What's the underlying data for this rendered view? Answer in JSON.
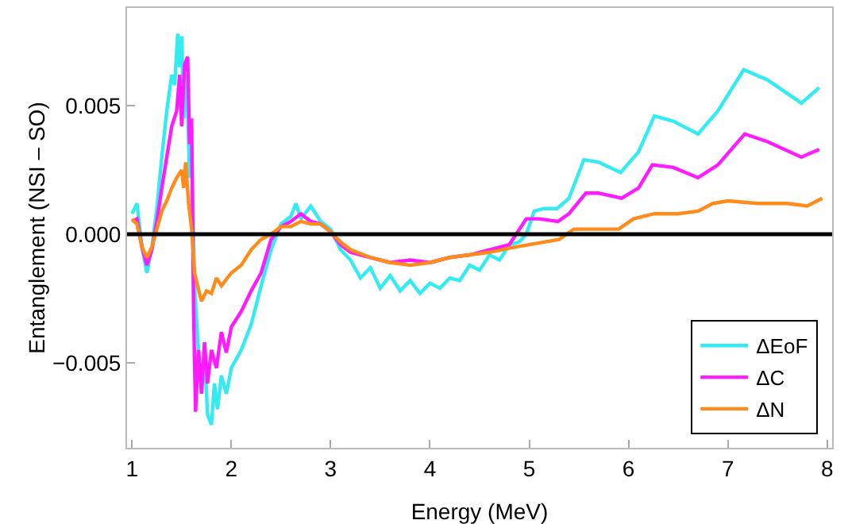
{
  "chart_data": {
    "type": "line",
    "xlabel": "Energy (MeV)",
    "ylabel": "Entanglement (NSI – SO)",
    "xlim": [
      0.95,
      8.05
    ],
    "ylim": [
      -0.0083,
      0.0088
    ],
    "xticks": [
      1,
      2,
      3,
      4,
      5,
      6,
      7,
      8
    ],
    "yticks": [
      {
        "value": -0.005,
        "label": "−0.005"
      },
      {
        "value": 0,
        "label": "0.000"
      },
      {
        "value": 0.005,
        "label": "0.005"
      }
    ],
    "grid": false,
    "legend": "bottom right",
    "marker": "none",
    "line_style": "solid",
    "ref_lines": [
      {
        "axis": "y",
        "value": 0,
        "color": "#000000"
      }
    ],
    "series": [
      {
        "name": "ΔEoF",
        "color": "#33ecf2",
        "x": [
          1.0,
          1.05,
          1.1,
          1.15,
          1.2,
          1.25,
          1.3,
          1.35,
          1.4,
          1.43,
          1.46,
          1.48,
          1.5,
          1.52,
          1.55,
          1.58,
          1.6,
          1.63,
          1.66,
          1.7,
          1.73,
          1.76,
          1.8,
          1.83,
          1.86,
          1.9,
          1.95,
          2.0,
          2.1,
          2.2,
          2.3,
          2.4,
          2.5,
          2.6,
          2.65,
          2.7,
          2.8,
          2.9,
          3.0,
          3.1,
          3.2,
          3.3,
          3.4,
          3.5,
          3.6,
          3.7,
          3.8,
          3.9,
          4.0,
          4.1,
          4.2,
          4.3,
          4.4,
          4.5,
          4.6,
          4.7,
          4.8,
          4.9,
          4.97,
          5.05,
          5.15,
          5.28,
          5.4,
          5.55,
          5.7,
          5.92,
          6.1,
          6.26,
          6.45,
          6.7,
          6.9,
          7.16,
          7.4,
          7.74,
          7.92
        ],
        "values": [
          0.0008,
          0.0012,
          -0.0005,
          -0.0015,
          -0.0005,
          0.001,
          0.003,
          0.0048,
          0.0062,
          0.0058,
          0.0078,
          0.0065,
          0.0077,
          0.0045,
          0.0062,
          0.0022,
          0.0035,
          -0.002,
          -0.004,
          -0.0062,
          -0.0045,
          -0.007,
          -0.0074,
          -0.0058,
          -0.0068,
          -0.0055,
          -0.0062,
          -0.0052,
          -0.0045,
          -0.0035,
          -0.002,
          -0.0006,
          0.0004,
          0.0007,
          0.0012,
          0.0006,
          0.0011,
          0.0005,
          0.0002,
          -0.0006,
          -0.001,
          -0.0017,
          -0.0013,
          -0.0021,
          -0.0016,
          -0.0022,
          -0.0018,
          -0.0023,
          -0.0019,
          -0.0021,
          -0.0017,
          -0.0018,
          -0.0012,
          -0.0014,
          -0.0008,
          -0.001,
          -0.0004,
          -0.0003,
          0.0,
          0.0009,
          0.001,
          0.001,
          0.0014,
          0.0029,
          0.0028,
          0.0024,
          0.0032,
          0.0046,
          0.0044,
          0.0039,
          0.0048,
          0.0064,
          0.006,
          0.0051,
          0.0057
        ]
      },
      {
        "name": "ΔC",
        "color": "#ff1aff",
        "x": [
          1.0,
          1.05,
          1.1,
          1.15,
          1.2,
          1.25,
          1.3,
          1.35,
          1.4,
          1.45,
          1.48,
          1.5,
          1.53,
          1.56,
          1.58,
          1.6,
          1.62,
          1.64,
          1.67,
          1.7,
          1.73,
          1.76,
          1.8,
          1.85,
          1.9,
          1.95,
          2.0,
          2.1,
          2.2,
          2.3,
          2.4,
          2.5,
          2.6,
          2.7,
          2.8,
          2.9,
          3.0,
          3.1,
          3.2,
          3.4,
          3.6,
          3.8,
          4.0,
          4.2,
          4.4,
          4.6,
          4.8,
          4.97,
          5.1,
          5.29,
          5.4,
          5.57,
          5.7,
          5.93,
          6.1,
          6.24,
          6.45,
          6.7,
          6.9,
          7.17,
          7.4,
          7.74,
          7.92
        ],
        "values": [
          0.0005,
          0.0006,
          -0.0005,
          -0.0012,
          -0.0006,
          0.0005,
          0.0018,
          0.003,
          0.0042,
          0.0048,
          0.0062,
          0.0042,
          0.0066,
          0.0069,
          0.0035,
          0.0045,
          -0.003,
          -0.0069,
          -0.0045,
          -0.0062,
          -0.0042,
          -0.0058,
          -0.0045,
          -0.0052,
          -0.0038,
          -0.0046,
          -0.0036,
          -0.003,
          -0.0022,
          -0.0015,
          -0.0002,
          0.0003,
          0.0005,
          0.0008,
          0.0005,
          0.0004,
          0.0001,
          -0.0004,
          -0.0007,
          -0.0009,
          -0.0011,
          -0.001,
          -0.0011,
          -0.0009,
          -0.0008,
          -0.0006,
          -0.0004,
          0.0006,
          0.0006,
          0.0005,
          0.0008,
          0.0016,
          0.0016,
          0.0014,
          0.0018,
          0.0027,
          0.0026,
          0.0022,
          0.0027,
          0.0039,
          0.0036,
          0.003,
          0.0033
        ]
      },
      {
        "name": "ΔN",
        "color": "#ff8c1a",
        "x": [
          1.0,
          1.05,
          1.1,
          1.15,
          1.2,
          1.25,
          1.3,
          1.35,
          1.4,
          1.45,
          1.5,
          1.52,
          1.54,
          1.57,
          1.6,
          1.63,
          1.66,
          1.7,
          1.75,
          1.8,
          1.85,
          1.9,
          2.0,
          2.1,
          2.2,
          2.3,
          2.4,
          2.5,
          2.6,
          2.7,
          2.8,
          2.9,
          3.0,
          3.1,
          3.2,
          3.4,
          3.6,
          3.8,
          4.0,
          4.2,
          4.4,
          4.6,
          4.85,
          5.0,
          5.3,
          5.45,
          5.7,
          5.9,
          6.05,
          6.26,
          6.5,
          6.7,
          6.85,
          7.0,
          7.3,
          7.6,
          7.8,
          7.95
        ],
        "values": [
          0.0006,
          0.0004,
          -0.0005,
          -0.0009,
          -0.0005,
          0.0002,
          0.0009,
          0.0013,
          0.0018,
          0.0022,
          0.0025,
          0.0018,
          0.0028,
          0.0012,
          0.0002,
          -0.0015,
          -0.002,
          -0.0026,
          -0.0022,
          -0.0023,
          -0.0017,
          -0.002,
          -0.0015,
          -0.0012,
          -0.0006,
          -0.0002,
          0.0,
          0.0003,
          0.0003,
          0.0005,
          0.0004,
          0.0004,
          0.0001,
          -0.0003,
          -0.0006,
          -0.0009,
          -0.0011,
          -0.0012,
          -0.0011,
          -0.0009,
          -0.0008,
          -0.0007,
          -0.0005,
          -0.0004,
          -0.0002,
          0.0002,
          0.0002,
          0.0002,
          0.0006,
          0.0008,
          0.0008,
          0.0009,
          0.0012,
          0.0013,
          0.0012,
          0.0012,
          0.0011,
          0.0014
        ]
      }
    ]
  }
}
